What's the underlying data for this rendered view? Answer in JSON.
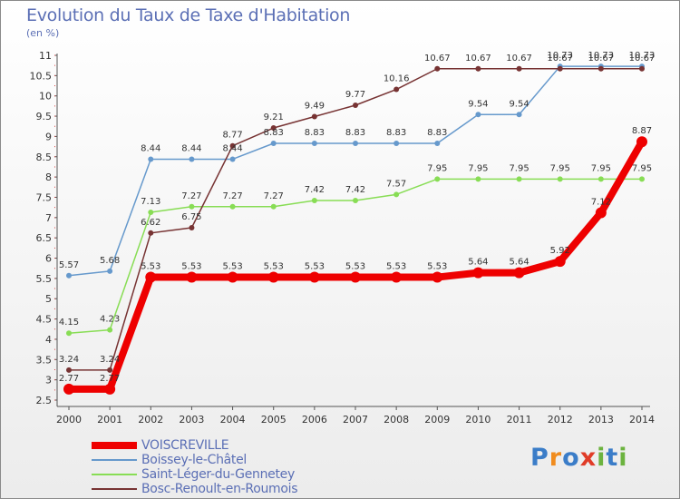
{
  "title": "Evolution du Taux de Taxe d'Habitation",
  "subtitle": "(en %)",
  "logo": {
    "letters": [
      "P",
      "r",
      "o",
      "x",
      "i",
      "t",
      "i"
    ],
    "colors": [
      "#3b7dc8",
      "#f08c1e",
      "#3b7dc8",
      "#e03c28",
      "#6cb33f",
      "#3b7dc8",
      "#6cb33f"
    ]
  },
  "chart_data": {
    "type": "line",
    "title": "Evolution du Taux de Taxe d'Habitation",
    "ylabel": "(en %)",
    "xlabel": "",
    "x": [
      "2000",
      "2001",
      "2002",
      "2003",
      "2004",
      "2005",
      "2006",
      "2007",
      "2008",
      "2009",
      "2010",
      "2011",
      "2012",
      "2013",
      "2014"
    ],
    "ylim": [
      2.5,
      11
    ],
    "yticks": [
      "2.5",
      "3",
      "3.5",
      "4",
      "4.5",
      "5",
      "5.5",
      "6",
      "6.5",
      "7",
      "7.5",
      "8",
      "8.5",
      "9",
      "9.5",
      "10",
      "10.5",
      "11"
    ],
    "grid": false,
    "legend_position": "bottom-left",
    "series": [
      {
        "name": "VOISCREVILLE",
        "color": "#ee0000",
        "width": 8,
        "values": [
          2.77,
          2.77,
          5.53,
          5.53,
          5.53,
          5.53,
          5.53,
          5.53,
          5.53,
          5.53,
          5.64,
          5.64,
          5.92,
          7.12,
          8.87
        ],
        "labels": [
          "2.77",
          "2.77",
          "5.53",
          "5.53",
          "5.53",
          "5.53",
          "5.53",
          "5.53",
          "5.53",
          "5.53",
          "5.64",
          "5.64",
          "5.92",
          "7.12",
          "8.87"
        ]
      },
      {
        "name": "Boissey-le-Châtel",
        "color": "#6699cc",
        "width": 1.5,
        "values": [
          5.57,
          5.68,
          8.44,
          8.44,
          8.44,
          8.83,
          8.83,
          8.83,
          8.83,
          8.83,
          9.54,
          9.54,
          10.73,
          10.73,
          10.73
        ],
        "labels": [
          "5.57",
          "5.68",
          "8.44",
          "8.44",
          "8.44",
          "8.83",
          "8.83",
          "8.83",
          "8.83",
          "8.83",
          "9.54",
          "9.54",
          "10.73",
          "10.73",
          "10.73"
        ]
      },
      {
        "name": "Saint-Léger-du-Gennetey",
        "color": "#88dd55",
        "width": 1.5,
        "values": [
          4.15,
          4.23,
          7.13,
          7.27,
          7.27,
          7.27,
          7.42,
          7.42,
          7.57,
          7.95,
          7.95,
          7.95,
          7.95,
          7.95,
          7.95
        ],
        "labels": [
          "4.15",
          "4.23",
          "7.13",
          "7.27",
          "7.27",
          "7.27",
          "7.42",
          "7.42",
          "7.57",
          "7.95",
          "7.95",
          "7.95",
          "7.95",
          "7.95",
          "7.95"
        ]
      },
      {
        "name": "Bosc-Renoult-en-Roumois",
        "color": "#773333",
        "width": 1.5,
        "values": [
          3.24,
          3.24,
          6.62,
          6.75,
          8.77,
          9.21,
          9.49,
          9.77,
          10.16,
          10.67,
          10.67,
          10.67,
          10.67,
          10.67,
          10.67
        ],
        "labels": [
          "3.24",
          "3.24",
          "6.62",
          "6.75",
          "8.77",
          "9.21",
          "9.49",
          "9.77",
          "10.16",
          "10.67",
          "10.67",
          "10.67",
          "10.67",
          "10.67",
          "10.67"
        ]
      }
    ]
  }
}
